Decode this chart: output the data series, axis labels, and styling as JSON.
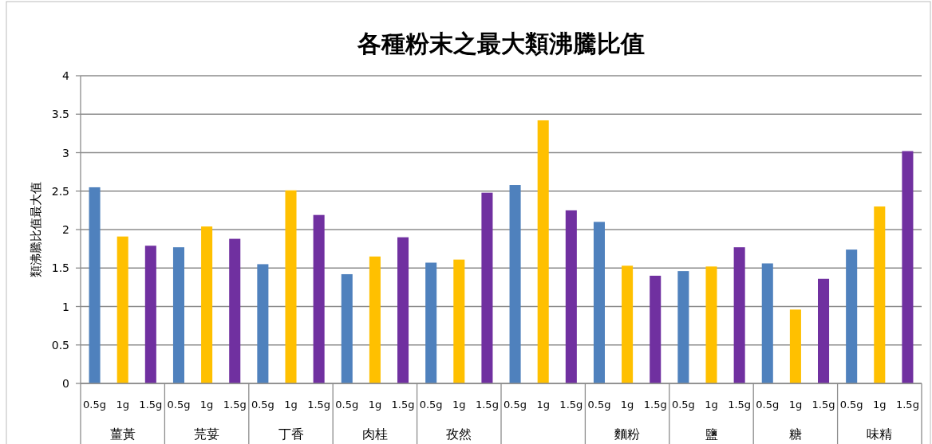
{
  "chart_data": {
    "type": "bar",
    "title": "各種粉末之最大類沸騰比值",
    "ylabel": "類沸騰比值最大值",
    "categories": [
      "薑黃",
      "芫荽",
      "丁香",
      "肉桂",
      "孜然",
      null,
      "麵粉",
      "鹽",
      "糖",
      "味精"
    ],
    "series": [
      {
        "name": "0.5g",
        "color": "#4f81bd",
        "values": [
          2.55,
          1.77,
          1.55,
          1.42,
          1.57,
          2.58,
          2.1,
          1.46,
          1.56,
          1.74
        ]
      },
      {
        "name": "1g",
        "color": "#ffc000",
        "values": [
          1.91,
          2.04,
          2.51,
          1.65,
          1.61,
          3.42,
          1.53,
          1.52,
          0.96,
          2.3
        ]
      },
      {
        "name": "1.5g",
        "color": "#7030a0",
        "values": [
          1.79,
          1.88,
          2.19,
          1.9,
          2.48,
          2.25,
          1.4,
          1.77,
          1.36,
          3.02
        ]
      }
    ],
    "ylim": [
      0,
      4
    ],
    "yticks": [
      0,
      0.5,
      1,
      1.5,
      2,
      2.5,
      3,
      3.5,
      4
    ],
    "grid": "y",
    "legend": false
  }
}
